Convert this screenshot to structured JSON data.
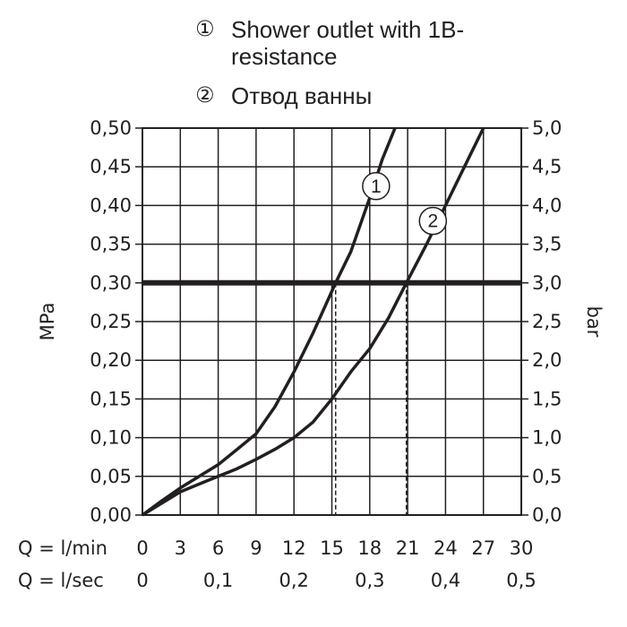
{
  "legend": [
    {
      "marker": "①",
      "text": "Shower outlet with 1B-resistance"
    },
    {
      "marker": "②",
      "text": "Отвод ванны"
    }
  ],
  "chart_data": {
    "type": "line",
    "title": "",
    "xlabel": "",
    "ylabel_left": "MPa",
    "ylabel_right": "bar",
    "xlim": [
      0,
      30
    ],
    "ylim": [
      0,
      0.5
    ],
    "x_ticks": [
      "0",
      "3",
      "6",
      "9",
      "12",
      "15",
      "18",
      "21",
      "24",
      "27",
      "30"
    ],
    "x_ticks_values": [
      0,
      3,
      6,
      9,
      12,
      15,
      18,
      21,
      24,
      27,
      30
    ],
    "x_row_label": "Q = l/min",
    "x2_row_label": "Q = l/sec",
    "x2_ticks": [
      "0",
      "0,1",
      "0,2",
      "0,3",
      "0,4",
      "0,5"
    ],
    "x2_ticks_positions_lmin": [
      0,
      6,
      12,
      18,
      24,
      30
    ],
    "y_left_ticks": [
      "0,00",
      "0,05",
      "0,10",
      "0,15",
      "0,20",
      "0,25",
      "0,30",
      "0,35",
      "0,40",
      "0,45",
      "0,50"
    ],
    "y_right_ticks": [
      "0,0",
      "0,5",
      "1,0",
      "1,5",
      "2,0",
      "2,5",
      "3,0",
      "3,5",
      "4,0",
      "4,5",
      "5,0"
    ],
    "y_ticks_values": [
      0,
      0.05,
      0.1,
      0.15,
      0.2,
      0.25,
      0.3,
      0.35,
      0.4,
      0.45,
      0.5
    ],
    "grid": true,
    "reference_line": {
      "y": 0.3
    },
    "dashed_drops": [
      {
        "x": 15.3,
        "y": 0.3
      },
      {
        "x": 20.9,
        "y": 0.3
      }
    ],
    "series": [
      {
        "label": "1",
        "x": [
          0,
          1.5,
          3,
          4.5,
          6,
          7.5,
          9,
          10.5,
          12,
          13.5,
          15.3,
          16.5,
          18,
          19,
          20
        ],
        "y": [
          0,
          0.018,
          0.035,
          0.05,
          0.065,
          0.085,
          0.105,
          0.14,
          0.185,
          0.235,
          0.3,
          0.34,
          0.41,
          0.46,
          0.5
        ],
        "label_at": {
          "x": 18.5,
          "y": 0.425
        }
      },
      {
        "label": "2",
        "x": [
          0,
          1.5,
          3,
          4.5,
          6,
          7.5,
          9,
          10.5,
          12,
          13.5,
          15,
          16.5,
          18,
          19.5,
          20.9,
          22.5,
          24,
          25.5,
          27
        ],
        "y": [
          0,
          0.015,
          0.03,
          0.04,
          0.05,
          0.06,
          0.072,
          0.085,
          0.1,
          0.12,
          0.15,
          0.185,
          0.215,
          0.255,
          0.3,
          0.35,
          0.4,
          0.45,
          0.5
        ],
        "label_at": {
          "x": 23,
          "y": 0.38
        }
      }
    ]
  }
}
